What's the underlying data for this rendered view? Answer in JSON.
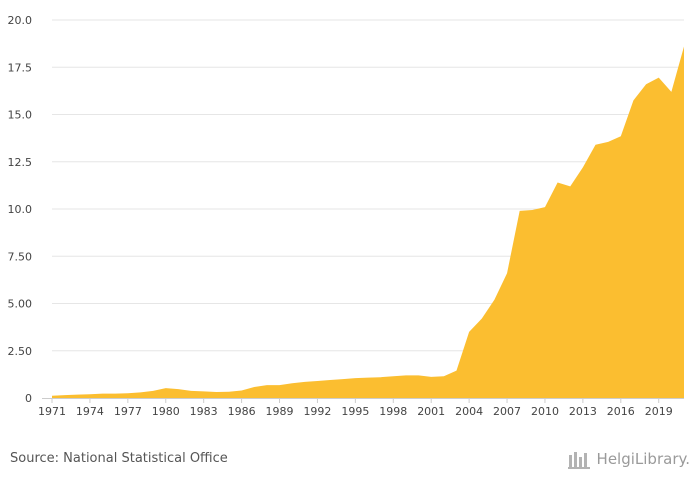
{
  "chart_data": {
    "type": "area",
    "x": [
      1971,
      1972,
      1973,
      1974,
      1975,
      1976,
      1977,
      1978,
      1979,
      1980,
      1981,
      1982,
      1983,
      1984,
      1985,
      1986,
      1987,
      1988,
      1989,
      1990,
      1991,
      1992,
      1993,
      1994,
      1995,
      1996,
      1997,
      1998,
      1999,
      2000,
      2001,
      2002,
      2003,
      2004,
      2005,
      2006,
      2007,
      2008,
      2009,
      2010,
      2011,
      2012,
      2013,
      2014,
      2015,
      2016,
      2017,
      2018,
      2019,
      2020,
      2021
    ],
    "values": [
      0.12,
      0.15,
      0.18,
      0.2,
      0.23,
      0.23,
      0.25,
      0.3,
      0.38,
      0.52,
      0.47,
      0.38,
      0.35,
      0.32,
      0.33,
      0.4,
      0.58,
      0.68,
      0.68,
      0.78,
      0.85,
      0.9,
      0.95,
      1.0,
      1.05,
      1.08,
      1.1,
      1.15,
      1.2,
      1.2,
      1.12,
      1.15,
      1.45,
      3.5,
      4.2,
      5.2,
      6.6,
      9.9,
      9.95,
      10.1,
      11.4,
      11.2,
      12.2,
      13.4,
      13.55,
      13.85,
      15.75,
      16.6,
      16.95,
      16.2,
      18.6
    ],
    "x_tick_labels": [
      "1971",
      "1974",
      "1977",
      "1980",
      "1983",
      "1986",
      "1989",
      "1992",
      "1995",
      "1998",
      "2001",
      "2004",
      "2007",
      "2010",
      "2013",
      "2016",
      "2019"
    ],
    "y_tick_labels": [
      "0",
      "2.50",
      "5.00",
      "7.50",
      "10.0",
      "12.5",
      "15.0",
      "17.5",
      "20.0"
    ],
    "ylim": [
      0,
      20
    ],
    "xlim": [
      1971,
      2021
    ],
    "grid": true,
    "fill_color": "#fbbe30",
    "grid_color": "#e6e6e6",
    "axis_color": "#cccccc"
  },
  "footer": {
    "source": "Source: National Statistical Office",
    "logo": "HelgiLibrary."
  }
}
